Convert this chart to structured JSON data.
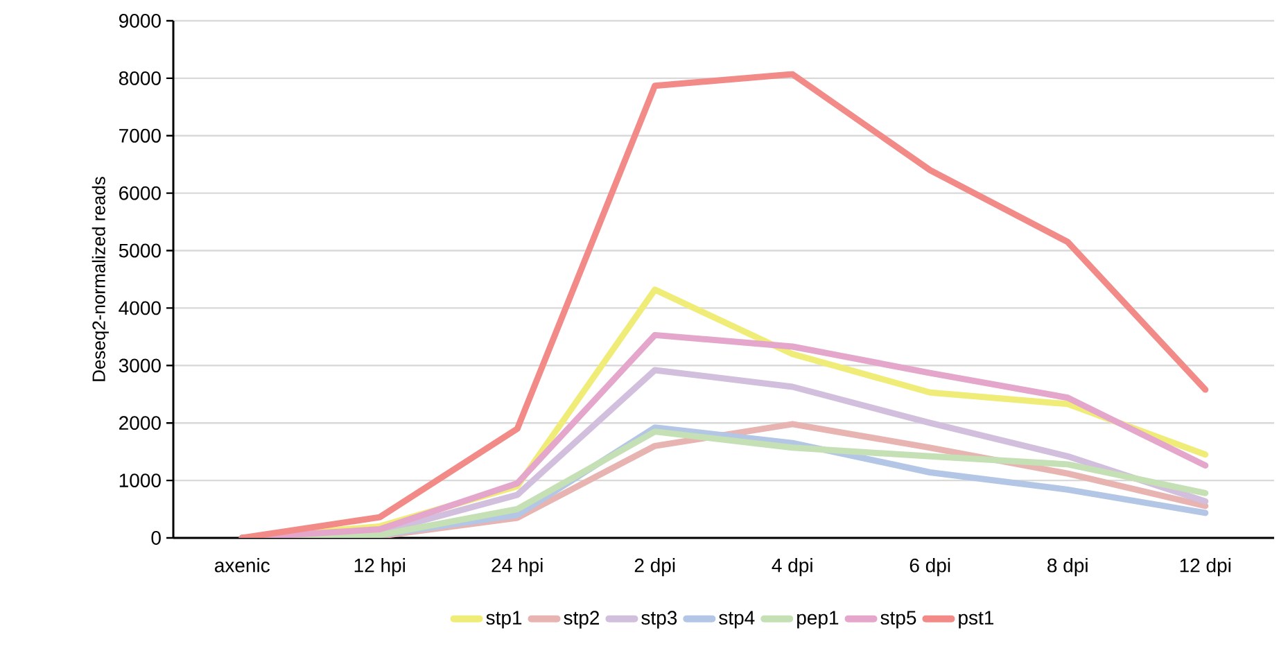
{
  "chart_data": {
    "type": "line",
    "ylabel": "Deseq2-normalized reads",
    "categories": [
      "axenic",
      "12 hpi",
      "24 hpi",
      "2 dpi",
      "4 dpi",
      "6 dpi",
      "8 dpi",
      "12 dpi"
    ],
    "series": [
      {
        "name": "stp1",
        "color": "#f0ec78",
        "values": [
          0,
          200,
          900,
          4320,
          3200,
          2530,
          2330,
          1450
        ]
      },
      {
        "name": "stp2",
        "color": "#e8b4b2",
        "values": [
          0,
          30,
          350,
          1600,
          1980,
          1570,
          1120,
          555
        ]
      },
      {
        "name": "stp3",
        "color": "#d2bedd",
        "values": [
          0,
          100,
          750,
          2920,
          2630,
          2000,
          1420,
          635
        ]
      },
      {
        "name": "stp4",
        "color": "#b3c6e6",
        "values": [
          0,
          50,
          400,
          1920,
          1650,
          1140,
          840,
          435
        ]
      },
      {
        "name": "pep1",
        "color": "#c4e0b4",
        "values": [
          0,
          50,
          500,
          1850,
          1570,
          1420,
          1280,
          780
        ]
      },
      {
        "name": "stp5",
        "color": "#e4a6cb",
        "values": [
          0,
          150,
          950,
          3530,
          3330,
          2870,
          2440,
          1260
        ]
      },
      {
        "name": "pst1",
        "color": "#f28a88",
        "values": [
          0,
          360,
          1900,
          7870,
          8070,
          6400,
          5150,
          2580
        ]
      }
    ],
    "ylim": [
      0,
      9000
    ],
    "yticks": [
      0,
      1000,
      2000,
      3000,
      4000,
      5000,
      6000,
      7000,
      8000,
      9000
    ],
    "grid": "y",
    "legend": "bottom",
    "marker": "none",
    "line_style": "solid"
  }
}
